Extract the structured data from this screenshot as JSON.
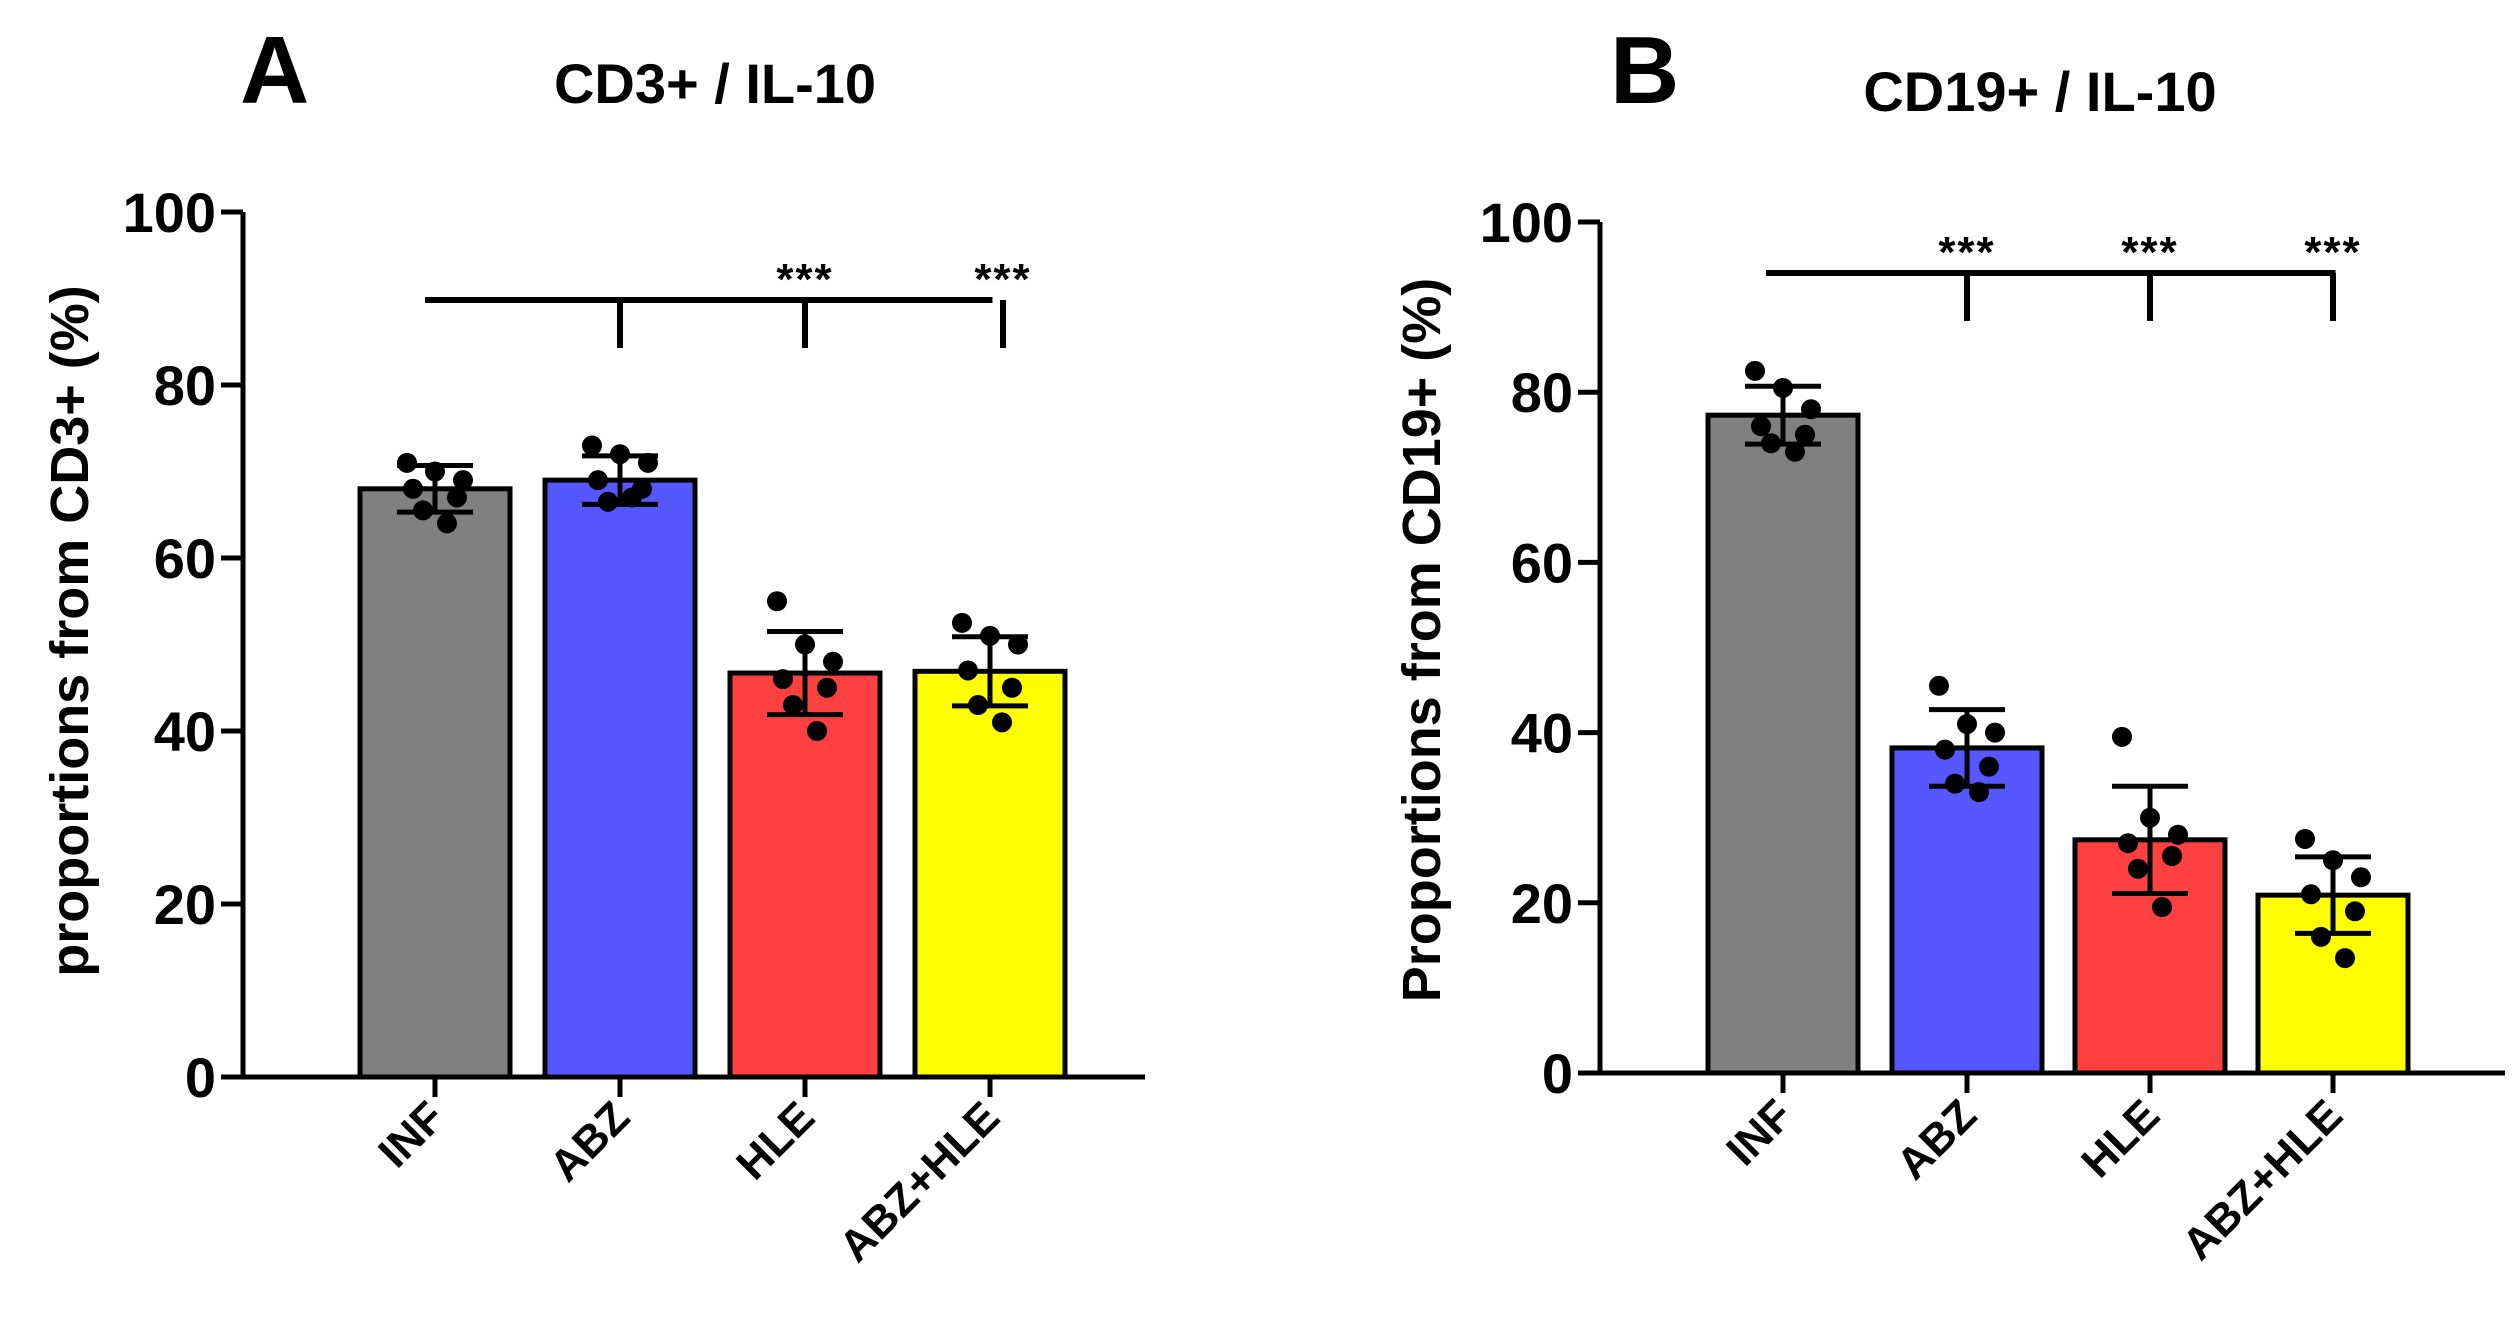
{
  "colors": {
    "INF": "#808080",
    "ABZ": "#5757ff",
    "HLE": "#ff4040",
    "ABZ+HLE": "#ffff00",
    "axis": "#000000",
    "point": "#000000"
  },
  "chart_data": [
    {
      "type": "bar",
      "panel": "A",
      "title": "CD3+ / IL-10",
      "xlabel": "",
      "ylabel": "proportions from CD3+ (%)",
      "ylim": [
        0,
        100
      ],
      "yticks": [
        "0",
        "20",
        "40",
        "60",
        "80",
        "100"
      ],
      "categories": [
        "INF",
        "ABZ",
        "HLE",
        "ABZ+HLE"
      ],
      "values": [
        68,
        69,
        46.7,
        46.9
      ],
      "error": [
        2.7,
        2.8,
        4.8,
        4.0
      ],
      "points": [
        [
          71,
          70,
          69,
          68,
          67,
          65.5,
          64
        ],
        [
          73,
          72,
          71,
          69,
          68,
          66.5,
          67
        ],
        [
          55,
          50,
          48,
          46,
          45,
          43,
          40
        ],
        [
          52.5,
          51,
          50,
          47,
          45,
          43,
          41
        ]
      ],
      "significance": {
        "reference": "INF",
        "marks": [
          {
            "category": "ABZ",
            "label": ""
          },
          {
            "category": "HLE",
            "label": "***"
          },
          {
            "category": "ABZ+HLE",
            "label": "***"
          }
        ]
      }
    },
    {
      "type": "bar",
      "panel": "B",
      "title": "CD19+ / IL-10",
      "xlabel": "",
      "ylabel": "Proportions from CD19+ (%)",
      "ylim": [
        0,
        100
      ],
      "yticks": [
        "0",
        "20",
        "40",
        "60",
        "80",
        "100"
      ],
      "categories": [
        "INF",
        "ABZ",
        "HLE",
        "ABZ+HLE"
      ],
      "values": [
        77.3,
        38.2,
        27.4,
        20.9
      ],
      "error": [
        3.4,
        4.5,
        6.3,
        4.5
      ],
      "points": [
        [
          82.5,
          80.5,
          78,
          76,
          75,
          74,
          73
        ],
        [
          45.5,
          41,
          40,
          38,
          36,
          34,
          33
        ],
        [
          39.5,
          30,
          28,
          27,
          25.5,
          24,
          19.5
        ],
        [
          27.5,
          25,
          23,
          21,
          19,
          16,
          13.5
        ]
      ],
      "significance": {
        "reference": "INF",
        "marks": [
          {
            "category": "ABZ",
            "label": "***"
          },
          {
            "category": "HLE",
            "label": "***"
          },
          {
            "category": "ABZ+HLE",
            "label": "***"
          }
        ]
      }
    }
  ]
}
